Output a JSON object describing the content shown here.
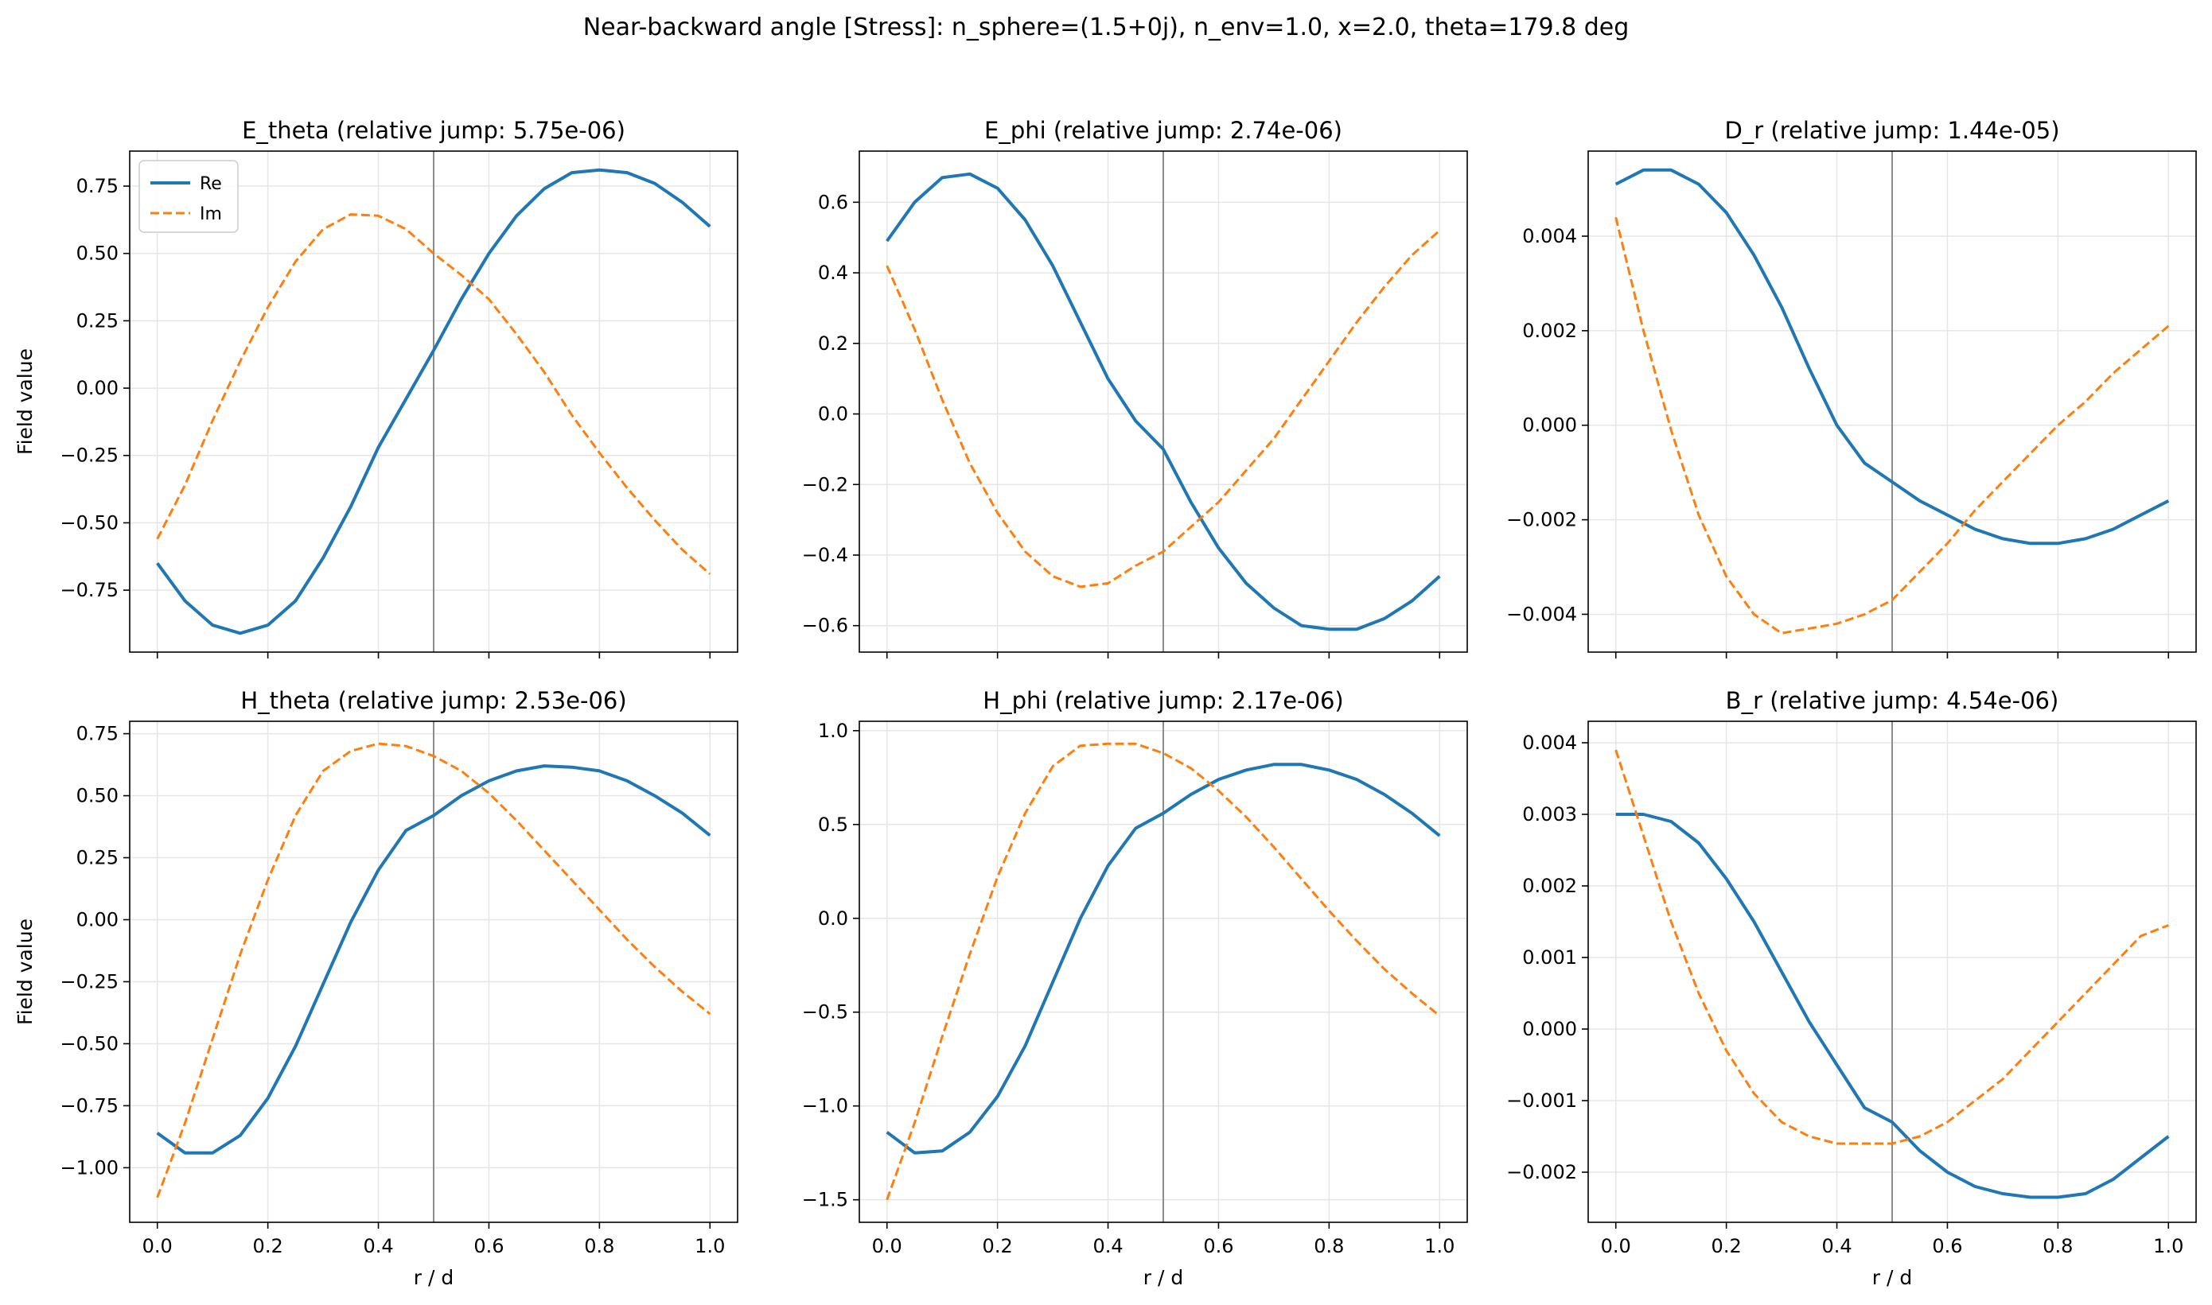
{
  "figure": {
    "suptitle": "Near-backward angle [Stress]: n_sphere=(1.5+0j), n_env=1.0, x=2.0, theta=179.8 deg",
    "colors": {
      "re": "#1f77b4",
      "im": "#ff7f0e",
      "boundary": "#8c8c8c",
      "grid": "#e6e6e6"
    }
  },
  "chart_data": [
    {
      "type": "line",
      "title": "E_theta (relative jump: 5.75e-06)",
      "xlabel": "",
      "ylabel": "Field value",
      "xlim": [
        -0.05,
        1.05
      ],
      "ylim": [
        -0.98,
        0.88
      ],
      "xticks": [
        0.0,
        0.2,
        0.4,
        0.6,
        0.8,
        1.0
      ],
      "xtick_labels_visible": false,
      "yticks": [
        -0.75,
        -0.5,
        -0.25,
        0.0,
        0.25,
        0.5,
        0.75
      ],
      "ytick_labels": [
        "−0.75",
        "−0.50",
        "−0.25",
        "0.00",
        "0.25",
        "0.50",
        "0.75"
      ],
      "boundary_x": 0.5,
      "legend": {
        "position": "top-left",
        "entries": [
          "Re",
          "Im"
        ]
      },
      "x": [
        0.0,
        0.05,
        0.1,
        0.15,
        0.2,
        0.25,
        0.3,
        0.35,
        0.4,
        0.45,
        0.5,
        0.55,
        0.6,
        0.65,
        0.7,
        0.75,
        0.8,
        0.85,
        0.9,
        0.95,
        1.0
      ],
      "series": [
        {
          "name": "Re",
          "style": "solid",
          "values": [
            -0.65,
            -0.79,
            -0.88,
            -0.91,
            -0.88,
            -0.79,
            -0.63,
            -0.44,
            -0.22,
            -0.04,
            0.14,
            0.33,
            0.5,
            0.64,
            0.74,
            0.8,
            0.81,
            0.8,
            0.76,
            0.69,
            0.6
          ]
        },
        {
          "name": "Im",
          "style": "dashed",
          "values": [
            -0.56,
            -0.36,
            -0.12,
            0.1,
            0.3,
            0.47,
            0.59,
            0.645,
            0.64,
            0.59,
            0.5,
            0.42,
            0.33,
            0.2,
            0.06,
            -0.1,
            -0.24,
            -0.37,
            -0.49,
            -0.6,
            -0.69
          ]
        }
      ]
    },
    {
      "type": "line",
      "title": "E_phi (relative jump: 2.74e-06)",
      "xlabel": "",
      "ylabel": "",
      "xlim": [
        -0.05,
        1.05
      ],
      "ylim": [
        -0.675,
        0.745
      ],
      "xticks": [
        0.0,
        0.2,
        0.4,
        0.6,
        0.8,
        1.0
      ],
      "xtick_labels_visible": false,
      "yticks": [
        -0.6,
        -0.4,
        -0.2,
        0.0,
        0.2,
        0.4,
        0.6
      ],
      "ytick_labels": [
        "−0.6",
        "−0.4",
        "−0.2",
        "0.0",
        "0.2",
        "0.4",
        "0.6"
      ],
      "boundary_x": 0.5,
      "x": [
        0.0,
        0.05,
        0.1,
        0.15,
        0.2,
        0.25,
        0.3,
        0.35,
        0.4,
        0.45,
        0.5,
        0.55,
        0.6,
        0.65,
        0.7,
        0.75,
        0.8,
        0.85,
        0.9,
        0.95,
        1.0
      ],
      "series": [
        {
          "name": "Re",
          "style": "solid",
          "values": [
            0.49,
            0.6,
            0.67,
            0.68,
            0.64,
            0.55,
            0.42,
            0.26,
            0.1,
            -0.02,
            -0.1,
            -0.25,
            -0.38,
            -0.48,
            -0.55,
            -0.6,
            -0.61,
            -0.61,
            -0.58,
            -0.53,
            -0.46
          ]
        },
        {
          "name": "Im",
          "style": "dashed",
          "values": [
            0.42,
            0.24,
            0.04,
            -0.14,
            -0.28,
            -0.39,
            -0.46,
            -0.49,
            -0.48,
            -0.43,
            -0.39,
            -0.32,
            -0.25,
            -0.16,
            -0.07,
            0.04,
            0.15,
            0.26,
            0.36,
            0.45,
            0.52
          ]
        }
      ]
    },
    {
      "type": "line",
      "title": "D_r (relative jump: 1.44e-05)",
      "xlabel": "",
      "ylabel": "",
      "xlim": [
        -0.05,
        1.05
      ],
      "ylim": [
        -0.0048,
        0.0058
      ],
      "xticks": [
        0.0,
        0.2,
        0.4,
        0.6,
        0.8,
        1.0
      ],
      "xtick_labels_visible": false,
      "yticks": [
        -0.004,
        -0.002,
        0.0,
        0.002,
        0.004
      ],
      "ytick_labels": [
        "−0.004",
        "−0.002",
        "0.000",
        "0.002",
        "0.004"
      ],
      "boundary_x": 0.5,
      "x": [
        0.0,
        0.05,
        0.1,
        0.15,
        0.2,
        0.25,
        0.3,
        0.35,
        0.4,
        0.45,
        0.5,
        0.55,
        0.6,
        0.65,
        0.7,
        0.75,
        0.8,
        0.85,
        0.9,
        0.95,
        1.0
      ],
      "series": [
        {
          "name": "Re",
          "style": "solid",
          "values": [
            0.0051,
            0.0054,
            0.0054,
            0.0051,
            0.0045,
            0.0036,
            0.0025,
            0.0012,
            0.0,
            -0.0008,
            -0.0012,
            -0.0016,
            -0.0019,
            -0.0022,
            -0.0024,
            -0.0025,
            -0.0025,
            -0.0024,
            -0.0022,
            -0.0019,
            -0.0016
          ]
        },
        {
          "name": "Im",
          "style": "dashed",
          "values": [
            0.0044,
            0.002,
            -0.0001,
            -0.0019,
            -0.0032,
            -0.004,
            -0.0044,
            -0.0043,
            -0.0042,
            -0.004,
            -0.0037,
            -0.0031,
            -0.0025,
            -0.0018,
            -0.0012,
            -0.0006,
            0.0,
            0.0005,
            0.0011,
            0.0016,
            0.0021
          ]
        }
      ]
    },
    {
      "type": "line",
      "title": "H_theta (relative jump: 2.53e-06)",
      "xlabel": "r / d",
      "ylabel": "Field value",
      "xlim": [
        -0.05,
        1.05
      ],
      "ylim": [
        -1.22,
        0.8
      ],
      "xticks": [
        0.0,
        0.2,
        0.4,
        0.6,
        0.8,
        1.0
      ],
      "xtick_labels": [
        "0.0",
        "0.2",
        "0.4",
        "0.6",
        "0.8",
        "1.0"
      ],
      "yticks": [
        -1.0,
        -0.75,
        -0.5,
        -0.25,
        0.0,
        0.25,
        0.5,
        0.75
      ],
      "ytick_labels": [
        "−1.00",
        "−0.75",
        "−0.50",
        "−0.25",
        "0.00",
        "0.25",
        "0.50",
        "0.75"
      ],
      "boundary_x": 0.5,
      "x": [
        0.0,
        0.05,
        0.1,
        0.15,
        0.2,
        0.25,
        0.3,
        0.35,
        0.4,
        0.45,
        0.5,
        0.55,
        0.6,
        0.65,
        0.7,
        0.75,
        0.8,
        0.85,
        0.9,
        0.95,
        1.0
      ],
      "series": [
        {
          "name": "Re",
          "style": "solid",
          "values": [
            -0.86,
            -0.94,
            -0.94,
            -0.87,
            -0.72,
            -0.51,
            -0.26,
            -0.01,
            0.2,
            0.36,
            0.42,
            0.5,
            0.56,
            0.6,
            0.62,
            0.615,
            0.6,
            0.56,
            0.5,
            0.43,
            0.34
          ]
        },
        {
          "name": "Im",
          "style": "dashed",
          "values": [
            -1.12,
            -0.82,
            -0.48,
            -0.14,
            0.16,
            0.42,
            0.6,
            0.68,
            0.71,
            0.7,
            0.66,
            0.6,
            0.51,
            0.4,
            0.28,
            0.16,
            0.04,
            -0.08,
            -0.19,
            -0.29,
            -0.38
          ]
        }
      ]
    },
    {
      "type": "line",
      "title": "H_phi (relative jump: 2.17e-06)",
      "xlabel": "r / d",
      "ylabel": "",
      "xlim": [
        -0.05,
        1.05
      ],
      "ylim": [
        -1.62,
        1.05
      ],
      "xticks": [
        0.0,
        0.2,
        0.4,
        0.6,
        0.8,
        1.0
      ],
      "xtick_labels": [
        "0.0",
        "0.2",
        "0.4",
        "0.6",
        "0.8",
        "1.0"
      ],
      "yticks": [
        -1.5,
        -1.0,
        -0.5,
        0.0,
        0.5,
        1.0
      ],
      "ytick_labels": [
        "−1.5",
        "−1.0",
        "−0.5",
        "0.0",
        "0.5",
        "1.0"
      ],
      "boundary_x": 0.5,
      "x": [
        0.0,
        0.05,
        0.1,
        0.15,
        0.2,
        0.25,
        0.3,
        0.35,
        0.4,
        0.45,
        0.5,
        0.55,
        0.6,
        0.65,
        0.7,
        0.75,
        0.8,
        0.85,
        0.9,
        0.95,
        1.0
      ],
      "series": [
        {
          "name": "Re",
          "style": "solid",
          "values": [
            -1.14,
            -1.25,
            -1.24,
            -1.14,
            -0.95,
            -0.68,
            -0.34,
            0.0,
            0.28,
            0.48,
            0.56,
            0.66,
            0.74,
            0.79,
            0.82,
            0.82,
            0.79,
            0.74,
            0.66,
            0.56,
            0.44
          ]
        },
        {
          "name": "Im",
          "style": "dashed",
          "values": [
            -1.5,
            -1.09,
            -0.63,
            -0.19,
            0.22,
            0.56,
            0.81,
            0.92,
            0.93,
            0.93,
            0.88,
            0.8,
            0.68,
            0.54,
            0.38,
            0.21,
            0.04,
            -0.12,
            -0.27,
            -0.4,
            -0.52
          ]
        }
      ]
    },
    {
      "type": "line",
      "title": "B_r (relative jump: 4.54e-06)",
      "xlabel": "r / d",
      "ylabel": "",
      "xlim": [
        -0.05,
        1.05
      ],
      "ylim": [
        -0.0027,
        0.0043
      ],
      "xticks": [
        0.0,
        0.2,
        0.4,
        0.6,
        0.8,
        1.0
      ],
      "xtick_labels": [
        "0.0",
        "0.2",
        "0.4",
        "0.6",
        "0.8",
        "1.0"
      ],
      "yticks": [
        -0.002,
        -0.001,
        0.0,
        0.001,
        0.002,
        0.003,
        0.004
      ],
      "ytick_labels": [
        "−0.002",
        "−0.001",
        "0.000",
        "0.001",
        "0.002",
        "0.003",
        "0.004"
      ],
      "boundary_x": 0.5,
      "x": [
        0.0,
        0.05,
        0.1,
        0.15,
        0.2,
        0.25,
        0.3,
        0.35,
        0.4,
        0.45,
        0.5,
        0.55,
        0.6,
        0.65,
        0.7,
        0.75,
        0.8,
        0.85,
        0.9,
        0.95,
        1.0
      ],
      "series": [
        {
          "name": "Re",
          "style": "solid",
          "values": [
            0.003,
            0.003,
            0.0029,
            0.0026,
            0.0021,
            0.0015,
            0.0008,
            0.0001,
            -0.0005,
            -0.0011,
            -0.0013,
            -0.0017,
            -0.002,
            -0.0022,
            -0.0023,
            -0.00235,
            -0.00235,
            -0.0023,
            -0.0021,
            -0.0018,
            -0.0015
          ]
        },
        {
          "name": "Im",
          "style": "dashed",
          "values": [
            0.0039,
            0.0027,
            0.0015,
            0.0005,
            -0.0003,
            -0.0009,
            -0.0013,
            -0.0015,
            -0.0016,
            -0.0016,
            -0.0016,
            -0.0015,
            -0.0013,
            -0.001,
            -0.0007,
            -0.0003,
            0.0001,
            0.0005,
            0.0009,
            0.0013,
            0.00145
          ]
        }
      ]
    }
  ]
}
